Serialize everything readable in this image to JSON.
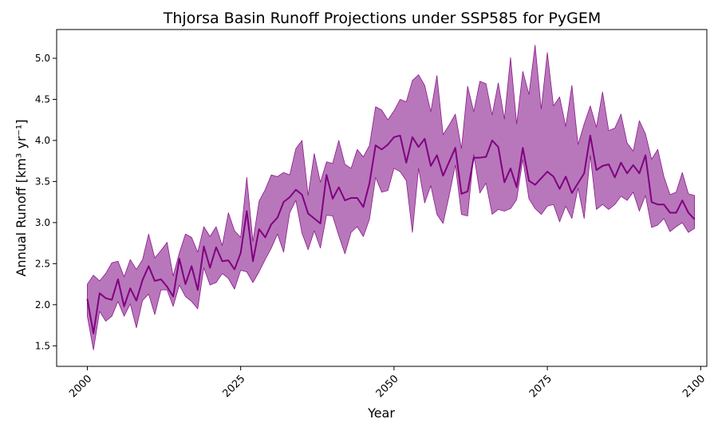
{
  "chart_data": {
    "type": "area",
    "title": "Thjorsa Basin Runoff Projections under SSP585 for PyGEM",
    "xlabel": "Year",
    "ylabel": "Annual Runoff [km³ yr⁻¹]",
    "xlim": [
      1995,
      2101
    ],
    "ylim": [
      1.25,
      5.35
    ],
    "xticks": [
      2000,
      2025,
      2050,
      2075,
      2100
    ],
    "yticks": [
      1.5,
      2.0,
      2.5,
      3.0,
      3.5,
      4.0,
      4.5,
      5.0
    ],
    "grid": false,
    "colors": {
      "fill": "#b877bb",
      "band_edge": "#8b1a8b",
      "median": "#800080"
    },
    "x": [
      2000,
      2001,
      2002,
      2003,
      2004,
      2005,
      2006,
      2007,
      2008,
      2009,
      2010,
      2011,
      2012,
      2013,
      2014,
      2015,
      2016,
      2017,
      2018,
      2019,
      2020,
      2021,
      2022,
      2023,
      2024,
      2025,
      2026,
      2027,
      2028,
      2029,
      2030,
      2031,
      2032,
      2033,
      2034,
      2035,
      2036,
      2037,
      2038,
      2039,
      2040,
      2041,
      2042,
      2043,
      2044,
      2045,
      2046,
      2047,
      2048,
      2049,
      2050,
      2051,
      2052,
      2053,
      2054,
      2055,
      2056,
      2057,
      2058,
      2059,
      2060,
      2061,
      2062,
      2063,
      2064,
      2065,
      2066,
      2067,
      2068,
      2069,
      2070,
      2071,
      2072,
      2073,
      2074,
      2075,
      2076,
      2077,
      2078,
      2079,
      2080,
      2081,
      2082,
      2083,
      2084,
      2085,
      2086,
      2087,
      2088,
      2089,
      2090,
      2091,
      2092,
      2093,
      2094,
      2095,
      2096,
      2097,
      2098,
      2099
    ],
    "series": [
      {
        "role": "upper",
        "values": [
          2.25,
          2.36,
          2.29,
          2.38,
          2.51,
          2.53,
          2.34,
          2.55,
          2.43,
          2.55,
          2.86,
          2.57,
          2.66,
          2.76,
          2.35,
          2.63,
          2.86,
          2.82,
          2.64,
          2.95,
          2.83,
          2.95,
          2.72,
          3.12,
          2.9,
          2.82,
          3.55,
          2.77,
          3.26,
          3.4,
          3.58,
          3.56,
          3.61,
          3.58,
          3.9,
          4.0,
          3.33,
          3.84,
          3.49,
          3.74,
          3.72,
          4.0,
          3.71,
          3.66,
          3.89,
          3.8,
          3.94,
          4.41,
          4.37,
          4.25,
          4.36,
          4.5,
          4.47,
          4.73,
          4.8,
          4.67,
          4.35,
          4.79,
          4.07,
          4.19,
          4.32,
          3.9,
          4.66,
          4.35,
          4.72,
          4.69,
          4.31,
          4.7,
          4.26,
          5.01,
          4.2,
          4.84,
          4.56,
          5.16,
          4.38,
          5.07,
          4.42,
          4.53,
          4.17,
          4.67,
          3.95,
          4.2,
          4.42,
          4.16,
          4.59,
          4.12,
          4.15,
          4.32,
          3.97,
          3.87,
          4.24,
          4.08,
          3.77,
          3.89,
          3.56,
          3.34,
          3.37,
          3.61,
          3.35,
          3.33
        ]
      },
      {
        "role": "median",
        "values": [
          2.07,
          1.65,
          2.14,
          2.08,
          2.06,
          2.31,
          1.98,
          2.2,
          2.05,
          2.3,
          2.47,
          2.29,
          2.31,
          2.22,
          2.1,
          2.56,
          2.25,
          2.47,
          2.18,
          2.71,
          2.45,
          2.7,
          2.53,
          2.54,
          2.43,
          2.63,
          3.14,
          2.53,
          2.92,
          2.82,
          2.98,
          3.06,
          3.25,
          3.31,
          3.4,
          3.34,
          3.11,
          3.05,
          2.99,
          3.58,
          3.29,
          3.43,
          3.27,
          3.3,
          3.3,
          3.19,
          3.48,
          3.94,
          3.89,
          3.95,
          4.04,
          4.06,
          3.73,
          4.04,
          3.92,
          4.02,
          3.69,
          3.82,
          3.57,
          3.74,
          3.91,
          3.35,
          3.38,
          3.79,
          3.79,
          3.8,
          4.0,
          3.92,
          3.49,
          3.66,
          3.43,
          3.91,
          3.51,
          3.46,
          3.54,
          3.62,
          3.56,
          3.41,
          3.56,
          3.36,
          3.48,
          3.6,
          4.06,
          3.64,
          3.69,
          3.71,
          3.55,
          3.73,
          3.6,
          3.7,
          3.6,
          3.82,
          3.25,
          3.22,
          3.22,
          3.12,
          3.12,
          3.27,
          3.12,
          3.04
        ]
      },
      {
        "role": "lower",
        "values": [
          1.86,
          1.45,
          1.92,
          1.8,
          1.86,
          2.04,
          1.86,
          2.01,
          1.72,
          2.05,
          2.13,
          1.88,
          2.18,
          2.18,
          1.98,
          2.24,
          2.1,
          2.04,
          1.95,
          2.45,
          2.24,
          2.27,
          2.38,
          2.32,
          2.19,
          2.42,
          2.4,
          2.27,
          2.4,
          2.55,
          2.69,
          2.86,
          2.64,
          3.12,
          3.27,
          2.87,
          2.67,
          2.9,
          2.69,
          3.09,
          3.08,
          2.84,
          2.62,
          2.88,
          2.95,
          2.83,
          3.04,
          3.55,
          3.37,
          3.39,
          3.66,
          3.62,
          3.51,
          2.88,
          3.66,
          3.24,
          3.45,
          3.1,
          2.99,
          3.33,
          3.7,
          3.1,
          3.08,
          3.83,
          3.36,
          3.48,
          3.1,
          3.16,
          3.14,
          3.17,
          3.28,
          3.77,
          3.29,
          3.17,
          3.1,
          3.2,
          3.22,
          3.01,
          3.2,
          3.05,
          3.42,
          3.05,
          3.82,
          3.16,
          3.22,
          3.16,
          3.22,
          3.32,
          3.27,
          3.37,
          3.14,
          3.33,
          2.94,
          2.97,
          3.05,
          2.89,
          2.95,
          3.0,
          2.88,
          2.93
        ]
      }
    ]
  }
}
